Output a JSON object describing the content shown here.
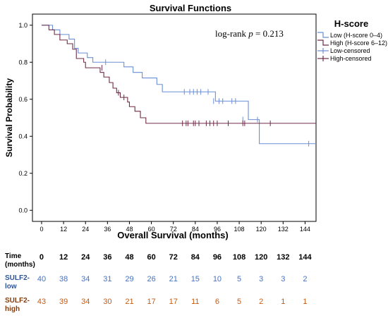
{
  "chart_data": {
    "type": "line",
    "title": "Survival Functions",
    "xlabel": "Overall Survival (months)",
    "ylabel": "Survival Probability",
    "xticks": [
      0,
      12,
      24,
      36,
      48,
      60,
      72,
      84,
      96,
      108,
      120,
      132,
      144
    ],
    "yticks": [
      0.0,
      0.2,
      0.4,
      0.6,
      0.8,
      1.0
    ],
    "xlim": [
      -5,
      150
    ],
    "ylim": [
      -0.06,
      1.06
    ],
    "annotation": "log-rank p = 0.213",
    "legend": {
      "title": "H-score",
      "position": "top-right",
      "entries": [
        "Low (H-score 0–4)",
        "High (H-score 6–12)",
        "Low-censored",
        "High-censored"
      ]
    },
    "series": [
      {
        "name": "Low (H-score 0–4)",
        "color": "#6b8fd6",
        "steps": [
          [
            0,
            1.0
          ],
          [
            6,
            0.975
          ],
          [
            10,
            0.95
          ],
          [
            15,
            0.925
          ],
          [
            18,
            0.875
          ],
          [
            20,
            0.85
          ],
          [
            25,
            0.825
          ],
          [
            28,
            0.8
          ],
          [
            45,
            0.775
          ],
          [
            50,
            0.745
          ],
          [
            55,
            0.715
          ],
          [
            63,
            0.68
          ],
          [
            66,
            0.64
          ],
          [
            95,
            0.59
          ],
          [
            113,
            0.49
          ],
          [
            119,
            0.36
          ],
          [
            150,
            0.36
          ]
        ],
        "censored": [
          [
            35,
            0.8
          ],
          [
            78,
            0.64
          ],
          [
            81,
            0.64
          ],
          [
            83,
            0.64
          ],
          [
            85,
            0.64
          ],
          [
            87,
            0.64
          ],
          [
            91,
            0.64
          ],
          [
            94,
            0.59
          ],
          [
            97,
            0.59
          ],
          [
            99,
            0.59
          ],
          [
            104,
            0.59
          ],
          [
            106,
            0.59
          ],
          [
            110,
            0.49
          ],
          [
            118,
            0.49
          ],
          [
            146,
            0.36
          ]
        ]
      },
      {
        "name": "High (H-score 6–12)",
        "color": "#6e2b47",
        "steps": [
          [
            0,
            1.0
          ],
          [
            4,
            0.975
          ],
          [
            7,
            0.95
          ],
          [
            10,
            0.92
          ],
          [
            14,
            0.9
          ],
          [
            17,
            0.87
          ],
          [
            19,
            0.82
          ],
          [
            23,
            0.8
          ],
          [
            24,
            0.77
          ],
          [
            32,
            0.745
          ],
          [
            34,
            0.72
          ],
          [
            37,
            0.69
          ],
          [
            39,
            0.66
          ],
          [
            41,
            0.635
          ],
          [
            43,
            0.61
          ],
          [
            47,
            0.585
          ],
          [
            48,
            0.56
          ],
          [
            51,
            0.535
          ],
          [
            54,
            0.5
          ],
          [
            57,
            0.47
          ],
          [
            150,
            0.47
          ]
        ],
        "censored": [
          [
            33,
            0.77
          ],
          [
            42,
            0.635
          ],
          [
            45,
            0.61
          ],
          [
            77,
            0.47
          ],
          [
            79,
            0.47
          ],
          [
            80,
            0.47
          ],
          [
            83,
            0.47
          ],
          [
            84,
            0.47
          ],
          [
            86,
            0.47
          ],
          [
            90,
            0.47
          ],
          [
            92,
            0.47
          ],
          [
            94,
            0.47
          ],
          [
            96,
            0.47
          ],
          [
            102,
            0.47
          ],
          [
            110,
            0.47
          ],
          [
            111,
            0.47
          ],
          [
            125,
            0.47
          ]
        ]
      }
    ]
  },
  "risk_table": {
    "header_label": "Time\n(months)",
    "times": [
      "0",
      "12",
      "24",
      "36",
      "48",
      "60",
      "72",
      "84",
      "96",
      "108",
      "120",
      "132",
      "144"
    ],
    "rows": [
      {
        "label": "SULF2-\nlow",
        "color": "#4472c4",
        "values": [
          "40",
          "38",
          "34",
          "31",
          "29",
          "26",
          "21",
          "15",
          "10",
          "5",
          "3",
          "3",
          "2"
        ]
      },
      {
        "label": "SULF2-\nhigh",
        "color": "#c55a11",
        "values": [
          "43",
          "39",
          "34",
          "30",
          "21",
          "17",
          "17",
          "11",
          "6",
          "5",
          "2",
          "1",
          "1"
        ]
      }
    ]
  }
}
